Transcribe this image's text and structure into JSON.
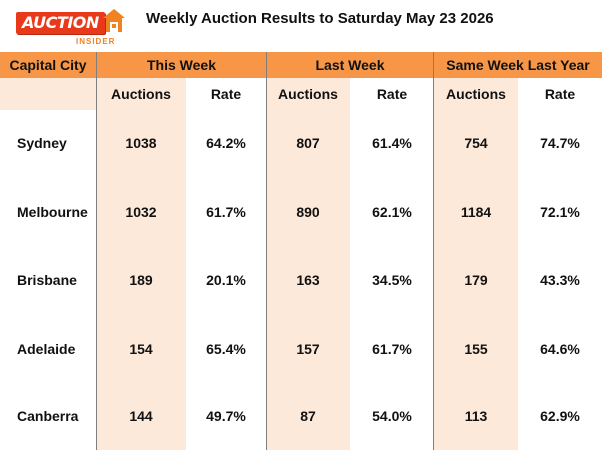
{
  "logo": {
    "brand": "AUCTION",
    "sub": "INSIDER"
  },
  "title": "Weekly Auction Results to Saturday May 23 2026",
  "headers": {
    "city": "Capital City",
    "groups": [
      "This Week",
      "Last Week",
      "Same Week Last Year"
    ],
    "sub": [
      "Auctions",
      "Rate",
      "Auctions",
      "Rate",
      "Auctions",
      "Rate"
    ]
  },
  "colors": {
    "header": "#f79646",
    "band": "#fde9d9",
    "logo": "#e8391a"
  },
  "rows": [
    {
      "city": "Sydney",
      "tw_auctions": "1038",
      "tw_rate": "64.2%",
      "lw_auctions": "807",
      "lw_rate": "61.4%",
      "ly_auctions": "754",
      "ly_rate": "74.7%"
    },
    {
      "city": "Melbourne",
      "tw_auctions": "1032",
      "tw_rate": "61.7%",
      "lw_auctions": "890",
      "lw_rate": "62.1%",
      "ly_auctions": "1184",
      "ly_rate": "72.1%"
    },
    {
      "city": "Brisbane",
      "tw_auctions": "189",
      "tw_rate": "20.1%",
      "lw_auctions": "163",
      "lw_rate": "34.5%",
      "ly_auctions": "179",
      "ly_rate": "43.3%"
    },
    {
      "city": "Adelaide",
      "tw_auctions": "154",
      "tw_rate": "65.4%",
      "lw_auctions": "157",
      "lw_rate": "61.7%",
      "ly_auctions": "155",
      "ly_rate": "64.6%"
    },
    {
      "city": "Canberra",
      "tw_auctions": "144",
      "tw_rate": "49.7%",
      "lw_auctions": "87",
      "lw_rate": "54.0%",
      "ly_auctions": "113",
      "ly_rate": "62.9%"
    }
  ]
}
